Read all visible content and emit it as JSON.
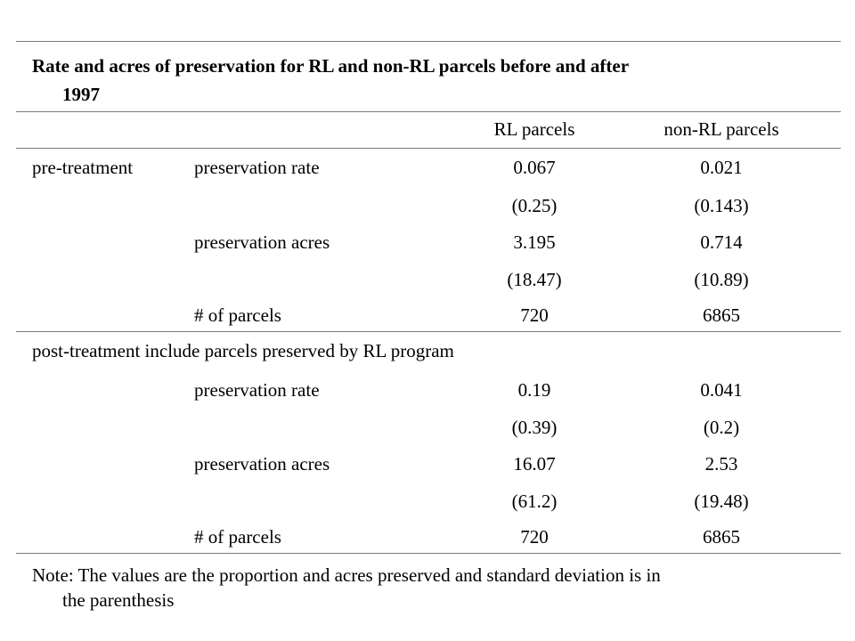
{
  "table": {
    "title_line1": "Rate and acres of preservation for RL and non-RL parcels before and after",
    "title_line2": "1997",
    "col_rl": "RL parcels",
    "col_nonrl": "non-RL parcels",
    "pre": {
      "label": "pre-treatment",
      "rate_label": "preservation rate",
      "rate_rl": "0.067",
      "rate_nonrl": "0.021",
      "rate_sd_rl": "(0.25)",
      "rate_sd_nonrl": "(0.143)",
      "acres_label": "preservation acres",
      "acres_rl": "3.195",
      "acres_nonrl": "0.714",
      "acres_sd_rl": "(18.47)",
      "acres_sd_nonrl": "(10.89)",
      "count_label": "# of parcels",
      "count_rl": "720",
      "count_nonrl": "6865"
    },
    "post": {
      "label": "post-treatment include parcels preserved by RL program",
      "rate_label": "preservation rate",
      "rate_rl": "0.19",
      "rate_nonrl": "0.041",
      "rate_sd_rl": "(0.39)",
      "rate_sd_nonrl": "(0.2)",
      "acres_label": "preservation acres",
      "acres_rl": "16.07",
      "acres_nonrl": "2.53",
      "acres_sd_rl": "(61.2)",
      "acres_sd_nonrl": "(19.48)",
      "count_label": "# of parcels",
      "count_rl": "720",
      "count_nonrl": "6865"
    },
    "note_line1": "Note: The values are the proportion and acres preserved and standard deviation is in",
    "note_line2": "the parenthesis"
  }
}
